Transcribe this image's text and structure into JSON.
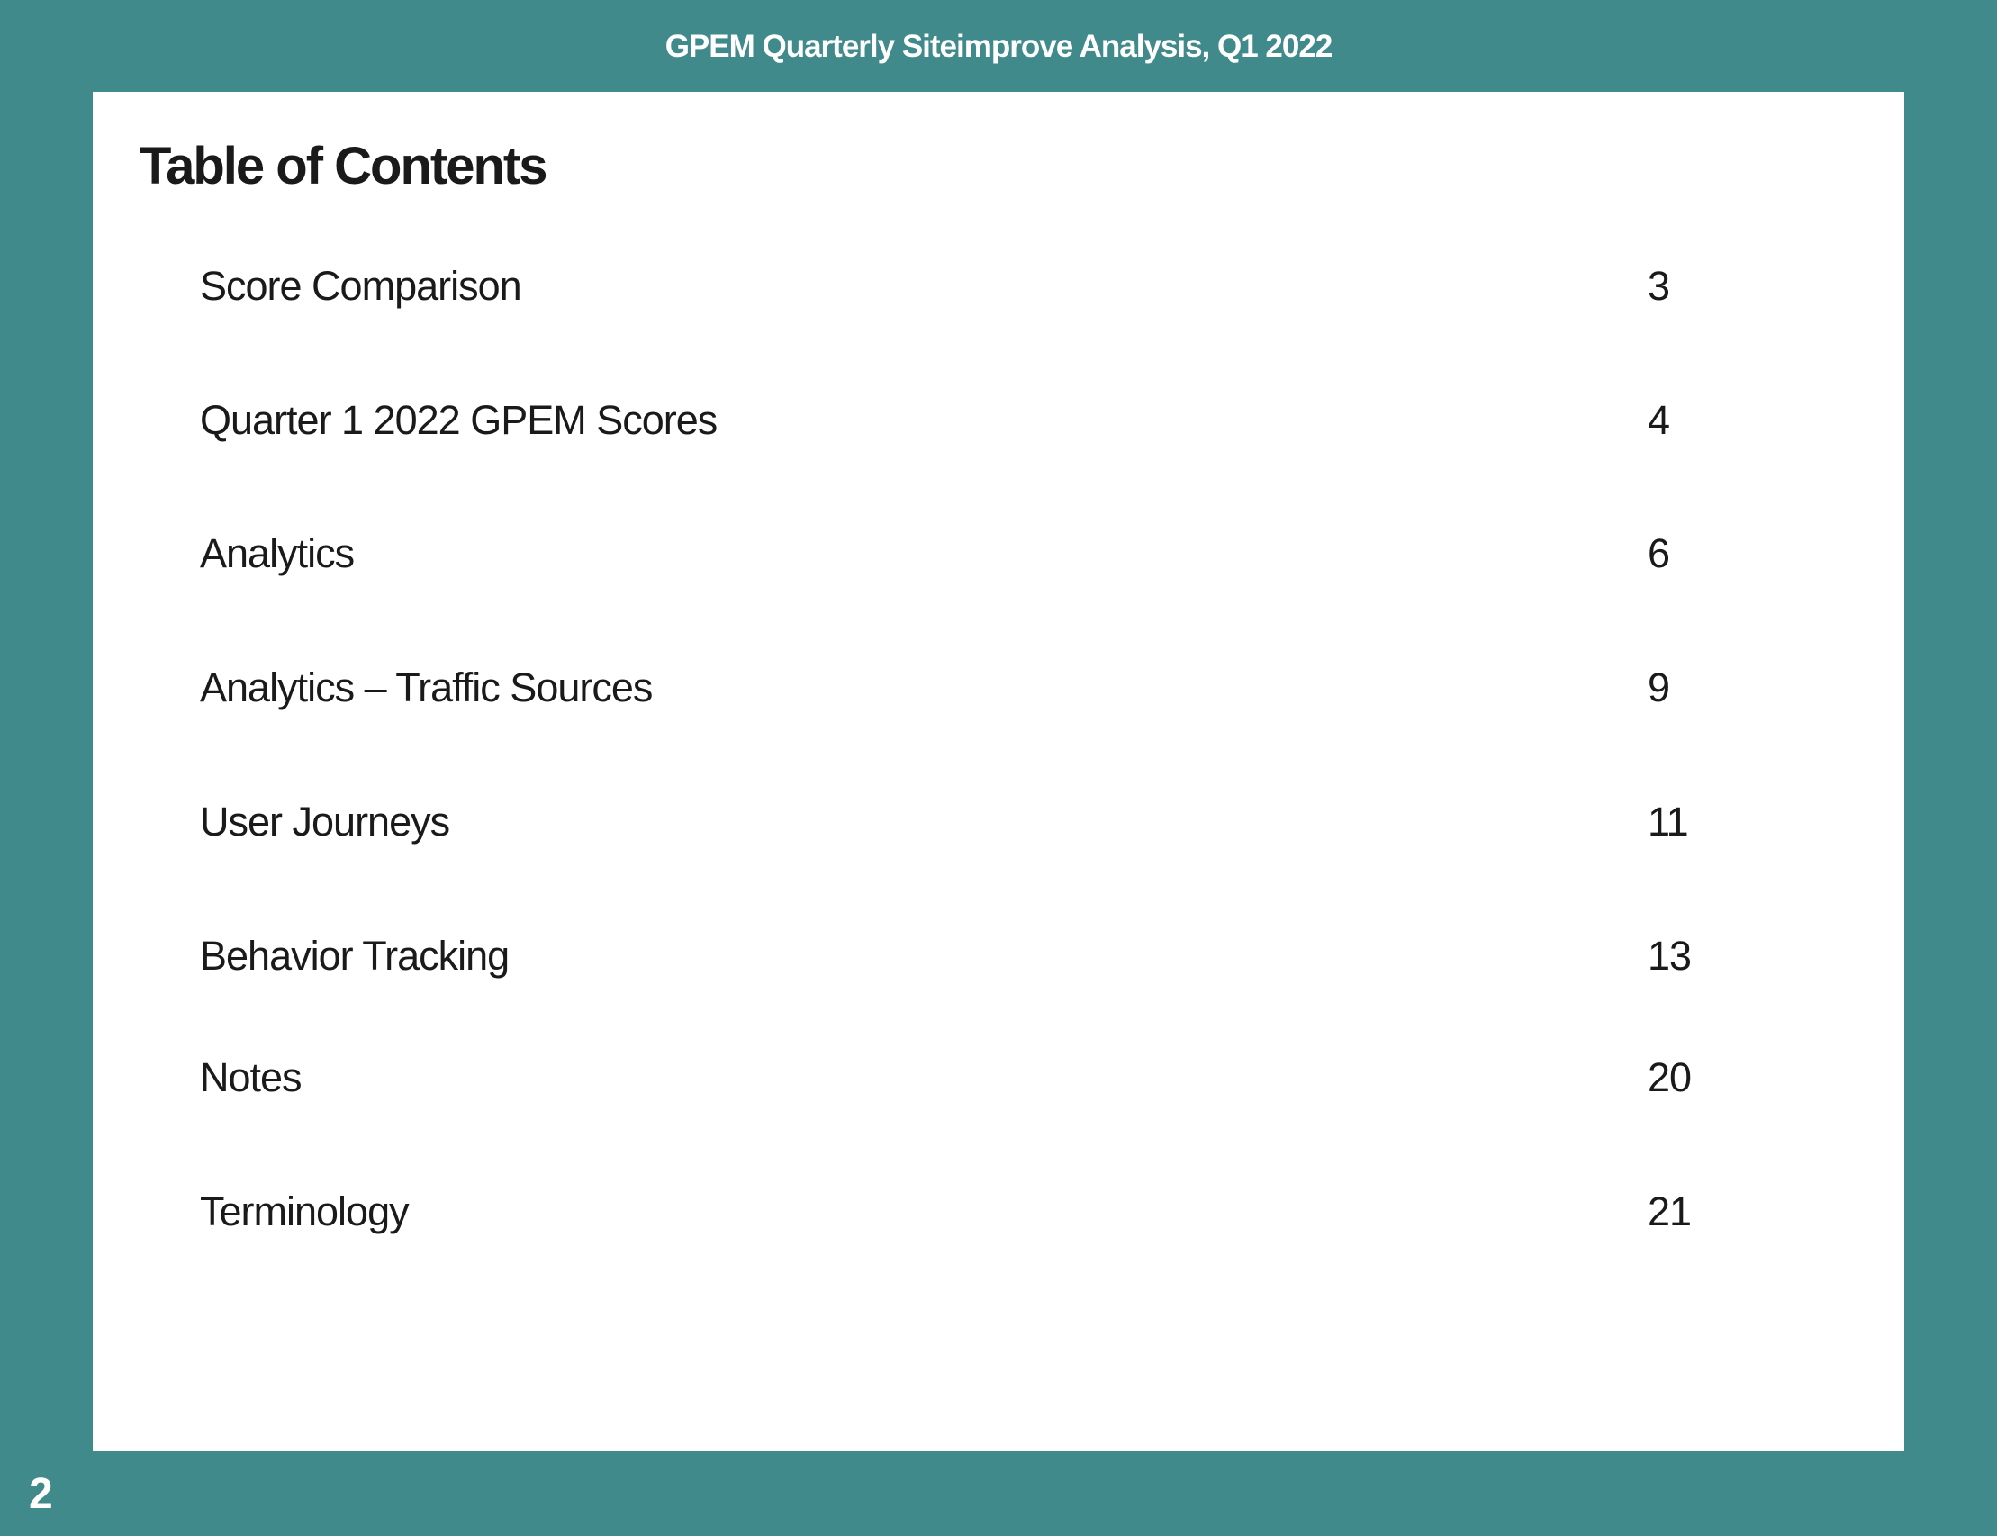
{
  "header": {
    "title": "GPEM Quarterly Siteimprove Analysis, Q1 2022"
  },
  "toc": {
    "heading": "Table of Contents",
    "entries": [
      {
        "title": "Score Comparison",
        "page": "3"
      },
      {
        "title": "Quarter 1 2022 GPEM Scores",
        "page": "4"
      },
      {
        "title": "Analytics",
        "page": "6"
      },
      {
        "title": "Analytics – Traffic Sources",
        "page": "9"
      },
      {
        "title": "User Journeys",
        "page": "11"
      },
      {
        "title": "Behavior Tracking",
        "page": "13"
      },
      {
        "title": "Notes",
        "page": "20"
      },
      {
        "title": "Terminology",
        "page": "21"
      }
    ]
  },
  "footer": {
    "page_number": "2"
  },
  "colors": {
    "frame": "#418a8c",
    "panel": "#ffffff",
    "text": "#1a1a1a"
  }
}
